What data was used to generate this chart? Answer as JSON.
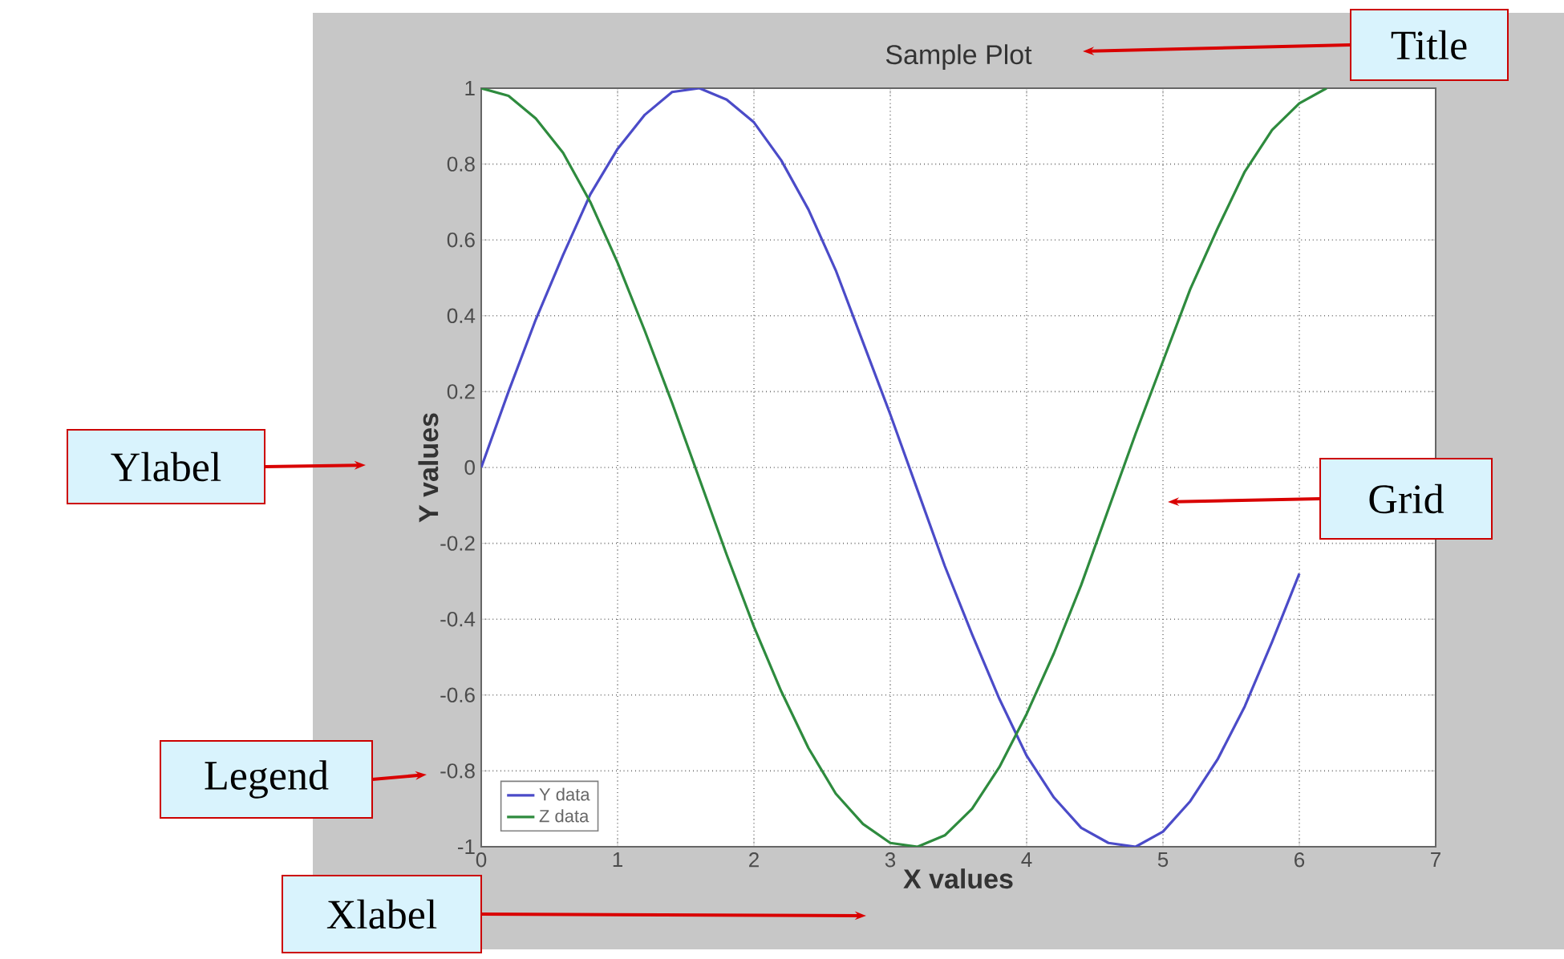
{
  "chart_data": {
    "type": "line",
    "title": "Sample Plot",
    "xlabel": "X values",
    "ylabel": "Y values",
    "x": [
      0,
      0.2,
      0.4,
      0.6,
      0.8,
      1,
      1.2,
      1.4,
      1.6,
      1.8,
      2,
      2.2,
      2.4,
      2.6,
      2.8,
      3,
      3.2,
      3.4,
      3.6,
      3.8,
      4,
      4.2,
      4.4,
      4.6,
      4.8,
      5,
      5.2,
      5.4,
      5.6,
      5.8,
      6,
      6.2
    ],
    "series": [
      {
        "name": "Y data",
        "color": "#4b4bc8",
        "values": [
          0,
          0.2,
          0.39,
          0.56,
          0.72,
          0.84,
          0.93,
          0.99,
          1.0,
          0.97,
          0.91,
          0.81,
          0.68,
          0.52,
          0.33,
          0.14,
          -0.06,
          -0.26,
          -0.44,
          -0.61,
          -0.76,
          -0.87,
          -0.95,
          -0.99,
          -1.0,
          -0.96,
          -0.88,
          -0.77,
          -0.63,
          -0.46,
          -0.28,
          null
        ]
      },
      {
        "name": "Z data",
        "color": "#2e8b3e",
        "values": [
          1,
          0.98,
          0.92,
          0.83,
          0.7,
          0.54,
          0.36,
          0.17,
          -0.03,
          -0.23,
          -0.42,
          -0.59,
          -0.74,
          -0.86,
          -0.94,
          -0.99,
          -1.0,
          -0.97,
          -0.9,
          -0.79,
          -0.65,
          -0.49,
          -0.31,
          -0.11,
          0.09,
          0.28,
          0.47,
          0.63,
          0.78,
          0.89,
          0.96,
          1.0
        ]
      }
    ],
    "xlim": [
      0,
      7
    ],
    "ylim": [
      -1,
      1
    ],
    "xticks": [
      0,
      1,
      2,
      3,
      4,
      5,
      6,
      7
    ],
    "yticks": [
      -1,
      -0.8,
      -0.6,
      -0.4,
      -0.2,
      0,
      0.2,
      0.4,
      0.6,
      0.8,
      1
    ],
    "grid": true,
    "legend": "bottom left",
    "line_style": "solid",
    "annotations": [
      "Title",
      "Ylabel",
      "Grid",
      "Legend",
      "Xlabel"
    ]
  }
}
